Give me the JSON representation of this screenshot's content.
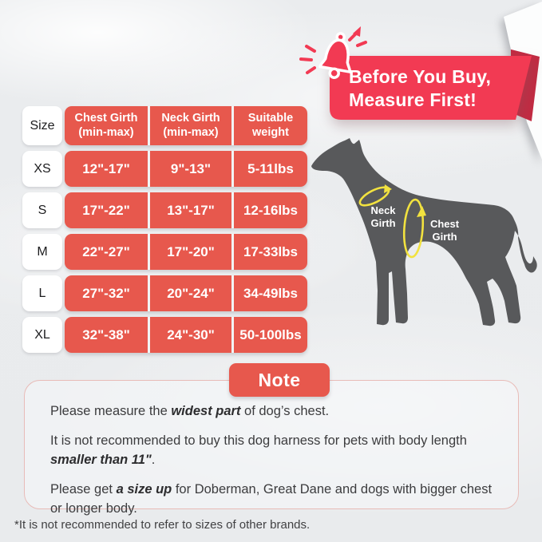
{
  "banner": {
    "title_line1": "Before You Buy,",
    "title_line2": "Measure First!"
  },
  "size_table": {
    "header": {
      "size": "Size",
      "chest": [
        "Chest Girth",
        "(min-max)"
      ],
      "neck": [
        "Neck Girth",
        "(min-max)"
      ],
      "weight": [
        "Suitable",
        "weight"
      ]
    },
    "rows": [
      {
        "size": "XS",
        "chest": "12\"-17\"",
        "neck": "9\"-13\"",
        "weight": "5-11lbs"
      },
      {
        "size": "S",
        "chest": "17\"-22\"",
        "neck": "13\"-17\"",
        "weight": "12-16lbs"
      },
      {
        "size": "M",
        "chest": "22\"-27\"",
        "neck": "17\"-20\"",
        "weight": "17-33lbs"
      },
      {
        "size": "L",
        "chest": "27\"-32\"",
        "neck": "20\"-24\"",
        "weight": "34-49lbs"
      },
      {
        "size": "XL",
        "chest": "32\"-38\"",
        "neck": "24\"-30\"",
        "weight": "50-100lbs"
      }
    ]
  },
  "diagram": {
    "neck_label": [
      "Neck",
      "Girth"
    ],
    "chest_label": [
      "Chest",
      "Girth"
    ]
  },
  "note": {
    "badge": "Note",
    "paragraphs": [
      [
        {
          "text": "Please measure the "
        },
        {
          "text": "widest part",
          "em": true
        },
        {
          "text": " of dog’s chest."
        }
      ],
      [
        {
          "text": "It is not recommended to buy this dog harness for pets with body length "
        },
        {
          "text": "smaller than 11\"",
          "em": true
        },
        {
          "text": "."
        }
      ],
      [
        {
          "text": "Please get "
        },
        {
          "text": "a size up",
          "em": true
        },
        {
          "text": " for Doberman, Great Dane and dogs with bigger chest or longer body."
        }
      ]
    ]
  },
  "footnote": "*It is not recommended to refer to sizes of other brands.",
  "colors": {
    "banner_red": "#F23A53",
    "table_red": "#E7584D",
    "fold_red": "#C22A42",
    "dog_gray": "#58595B",
    "highlight_yellow": "#F2E23F",
    "note_border": "#E8BBB7",
    "text_dark": "#3C3C3E"
  }
}
